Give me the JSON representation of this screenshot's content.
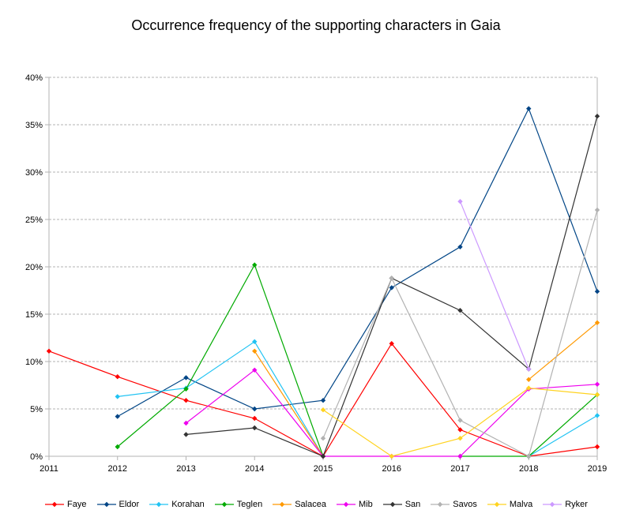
{
  "chart_data": {
    "type": "line",
    "title": "Occurrence frequency of the supporting characters in Gaia",
    "xlabel": "",
    "ylabel": "",
    "x": [
      "2011",
      "2012",
      "2013",
      "2014",
      "2015",
      "2016",
      "2017",
      "2018",
      "2019"
    ],
    "y_ticks": [
      "0%",
      "5%",
      "10%",
      "15%",
      "20%",
      "25%",
      "30%",
      "35%",
      "40%"
    ],
    "ylim": [
      0,
      40
    ],
    "grid": "horizontal dashed",
    "legend_position": "bottom",
    "series": [
      {
        "name": "Faye",
        "color": "#ff0000",
        "values": [
          11.1,
          8.4,
          5.9,
          4.0,
          0,
          11.9,
          2.8,
          0,
          1.0
        ]
      },
      {
        "name": "Eldor",
        "color": "#004586",
        "values": [
          null,
          4.2,
          8.3,
          5.0,
          5.9,
          17.8,
          22.1,
          36.7,
          17.4
        ]
      },
      {
        "name": "Korahan",
        "color": "#21c3f3",
        "values": [
          null,
          6.3,
          7.2,
          12.1,
          0,
          null,
          null,
          0,
          4.3
        ]
      },
      {
        "name": "Teglen",
        "color": "#00aa00",
        "values": [
          null,
          1.0,
          7.1,
          20.2,
          0,
          null,
          0,
          0,
          6.5
        ]
      },
      {
        "name": "Salacea",
        "color": "#ff9900",
        "values": [
          null,
          null,
          null,
          11.1,
          0,
          null,
          null,
          8.1,
          14.1
        ]
      },
      {
        "name": "Mib",
        "color": "#ee00ee",
        "values": [
          null,
          null,
          3.5,
          9.1,
          0,
          0,
          0,
          7.1,
          7.6
        ]
      },
      {
        "name": "San",
        "color": "#333333",
        "values": [
          null,
          null,
          2.3,
          3.0,
          0,
          18.8,
          15.4,
          9.2,
          35.9
        ]
      },
      {
        "name": "Savos",
        "color": "#b2b2b2",
        "values": [
          null,
          null,
          null,
          null,
          1.9,
          18.8,
          3.8,
          0,
          26.0
        ]
      },
      {
        "name": "Malva",
        "color": "#ffd320",
        "values": [
          null,
          null,
          null,
          null,
          4.9,
          0,
          1.9,
          7.2,
          6.5
        ]
      },
      {
        "name": "Ryker",
        "color": "#cc99ff",
        "values": [
          null,
          null,
          null,
          null,
          null,
          null,
          26.9,
          9.2,
          null
        ]
      }
    ]
  }
}
